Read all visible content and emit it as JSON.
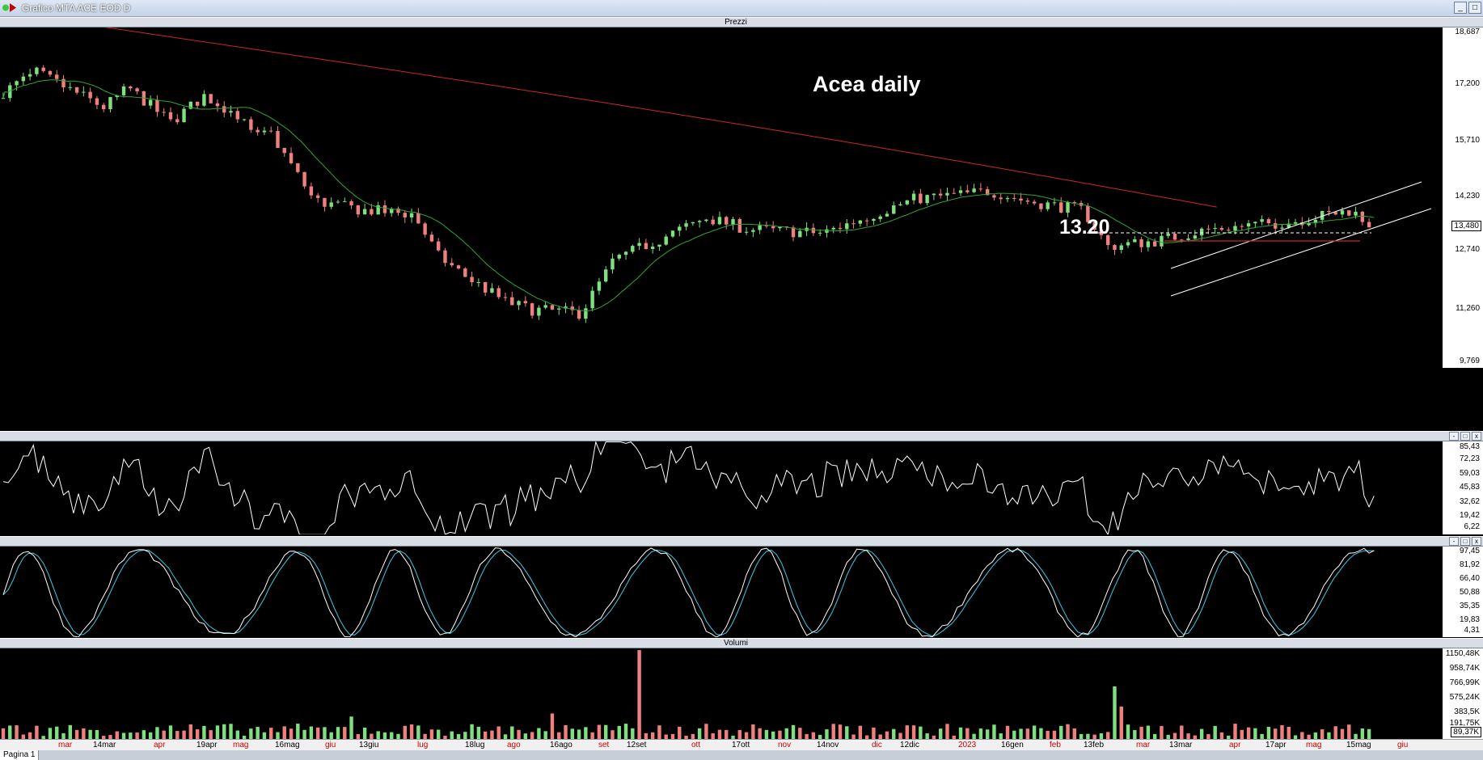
{
  "window": {
    "title": "Grafico MTA ACE EOD D",
    "buttons": [
      "_",
      "□"
    ]
  },
  "panes": {
    "price": {
      "title": "Prezzi",
      "annotation_title": "Acea daily",
      "level_label": "13.20",
      "last_value": "13,480",
      "labels": [
        "18,687",
        "17,200",
        "15,710",
        "14,230",
        "12,740",
        "11,260",
        "9,769"
      ]
    },
    "rsi": {
      "title": "",
      "labels": [
        "85,43",
        "72,23",
        "59,03",
        "45,83",
        "32,62",
        "19,42",
        "6,22"
      ]
    },
    "stoch": {
      "title": "",
      "labels": [
        "97,45",
        "81,92",
        "66,40",
        "50,88",
        "35,35",
        "19,83",
        "4,31"
      ]
    },
    "volume": {
      "title": "Volumi",
      "labels": [
        "1150,48K",
        "958,74K",
        "766,99K",
        "575,24K",
        "383,5K",
        "191,75K"
      ],
      "last_value": "89,37K"
    }
  },
  "pane_buttons": [
    "-",
    "□",
    "x"
  ],
  "xaxis": [
    {
      "t": "mar",
      "red": true
    },
    {
      "t": "14mar",
      "red": false
    },
    {
      "t": "apr",
      "red": true
    },
    {
      "t": "19apr",
      "red": false
    },
    {
      "t": "mag",
      "red": true
    },
    {
      "t": "16mag",
      "red": false
    },
    {
      "t": "giu",
      "red": true
    },
    {
      "t": "13giu",
      "red": false
    },
    {
      "t": "lug",
      "red": true
    },
    {
      "t": "18lug",
      "red": false
    },
    {
      "t": "ago",
      "red": true
    },
    {
      "t": "16ago",
      "red": false
    },
    {
      "t": "set",
      "red": true
    },
    {
      "t": "12set",
      "red": false
    },
    {
      "t": "ott",
      "red": true
    },
    {
      "t": "17ott",
      "red": false
    },
    {
      "t": "nov",
      "red": true
    },
    {
      "t": "14nov",
      "red": false
    },
    {
      "t": "dic",
      "red": true
    },
    {
      "t": "12dic",
      "red": false
    },
    {
      "t": "2023",
      "red": true
    },
    {
      "t": "16gen",
      "red": false
    },
    {
      "t": "feb",
      "red": true
    },
    {
      "t": "13feb",
      "red": false
    },
    {
      "t": "mar",
      "red": true
    },
    {
      "t": "13mar",
      "red": false
    },
    {
      "t": "apr",
      "red": true
    },
    {
      "t": "17apr",
      "red": false
    },
    {
      "t": "mag",
      "red": true
    },
    {
      "t": "15mag",
      "red": false
    },
    {
      "t": "giu",
      "red": true
    }
  ],
  "tab": {
    "label": "Pagina 1"
  },
  "colors": {
    "up": "#7ee07e",
    "down": "#f08080",
    "ma_short": "#2ea82e",
    "ma_long": "#c82828",
    "rsi": "#ffffff",
    "stoch_k": "#ffffff",
    "stoch_d": "#3ec8e6"
  },
  "chart_data": {
    "type": "line",
    "price_ylim": [
      9.769,
      18.687
    ],
    "price_keypoints": [
      [
        0,
        17.0
      ],
      [
        20,
        17.5
      ],
      [
        60,
        16.6
      ],
      [
        75,
        17.1
      ],
      [
        100,
        16.2
      ],
      [
        120,
        16.9
      ],
      [
        140,
        16.4
      ],
      [
        150,
        15.8
      ],
      [
        160,
        15.9
      ],
      [
        185,
        14.2
      ],
      [
        190,
        14.1
      ],
      [
        215,
        13.9
      ],
      [
        245,
        13.8
      ],
      [
        260,
        12.7
      ],
      [
        275,
        12.2
      ],
      [
        300,
        11.5
      ],
      [
        315,
        11.3
      ],
      [
        345,
        11.2
      ],
      [
        365,
        12.6
      ],
      [
        395,
        13.2
      ],
      [
        420,
        13.7
      ],
      [
        445,
        13.4
      ],
      [
        490,
        13.3
      ],
      [
        520,
        13.8
      ],
      [
        545,
        14.2
      ],
      [
        570,
        14.3
      ],
      [
        590,
        14.4
      ],
      [
        610,
        14.15
      ],
      [
        645,
        13.9
      ],
      [
        660,
        12.95
      ],
      [
        690,
        13.1
      ],
      [
        720,
        13.4
      ],
      [
        770,
        13.6
      ],
      [
        805,
        13.9
      ],
      [
        818,
        13.48
      ]
    ]
  }
}
